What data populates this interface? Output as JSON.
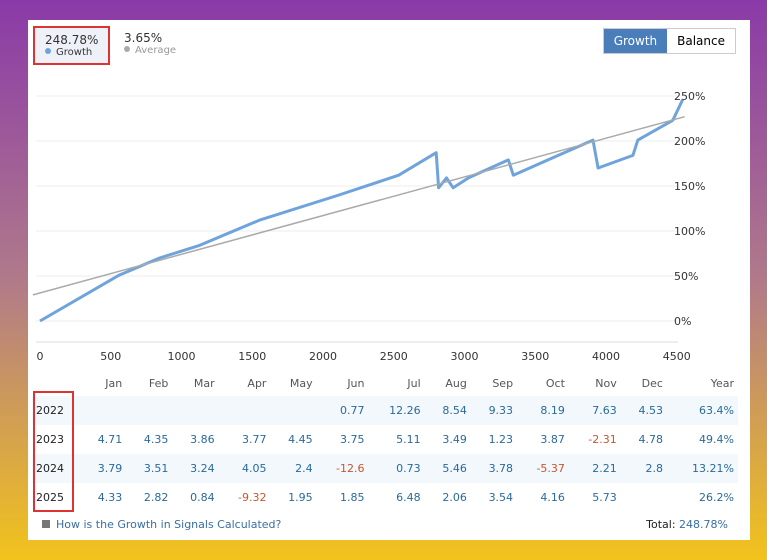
{
  "stats": {
    "growth_value": "248.78%",
    "growth_label": "Growth",
    "average_value": "3.65%",
    "average_label": "Average"
  },
  "toggle": {
    "growth": "Growth",
    "balance": "Balance"
  },
  "colors": {
    "growth": "#6fa3dc",
    "trend": "#aaaaaa",
    "negative": "#c8552e",
    "positive": "#2a6a9a"
  },
  "chart_data": {
    "type": "line",
    "xlim": [
      0,
      4700
    ],
    "ylim": [
      -25,
      260
    ],
    "x_ticks": [
      0,
      500,
      1000,
      1500,
      2000,
      2500,
      3000,
      3500,
      4000,
      4500
    ],
    "y_ticks": [
      0,
      50,
      100,
      150,
      200,
      250
    ],
    "y_tick_labels": [
      "0%",
      "50%",
      "100%",
      "150%",
      "200%",
      "250%"
    ],
    "series": [
      {
        "name": "Growth",
        "x": [
          0,
          560,
          845,
          1127,
          1550,
          2113,
          2535,
          2800,
          2817,
          2873,
          2920,
          3028,
          3310,
          3345,
          3662,
          3908,
          3944,
          4190,
          4225,
          4472,
          4542
        ],
        "y": [
          0,
          51,
          70,
          84,
          112,
          140,
          162,
          187,
          148,
          159,
          148,
          159,
          179,
          162,
          184,
          201,
          170,
          184,
          201,
          223,
          246
        ]
      },
      {
        "name": "Trend",
        "x": [
          -50,
          4556
        ],
        "y": [
          29,
          227
        ]
      }
    ]
  },
  "table": {
    "headers": [
      "",
      "Jan",
      "Feb",
      "Mar",
      "Apr",
      "May",
      "Jun",
      "Jul",
      "Aug",
      "Sep",
      "Oct",
      "Nov",
      "Dec",
      "Year"
    ],
    "rows": [
      [
        "2022",
        "",
        "",
        "",
        "",
        "",
        "0.77",
        "12.26",
        "8.54",
        "9.33",
        "8.19",
        "7.63",
        "4.53",
        "63.4%"
      ],
      [
        "2023",
        "4.71",
        "4.35",
        "3.86",
        "3.77",
        "4.45",
        "3.75",
        "5.11",
        "3.49",
        "1.23",
        "3.87",
        "-2.31",
        "4.78",
        "49.4%"
      ],
      [
        "2024",
        "3.79",
        "3.51",
        "3.24",
        "4.05",
        "2.4",
        "-12.6",
        "0.73",
        "5.46",
        "3.78",
        "-5.37",
        "2.21",
        "2.8",
        "13.21%"
      ],
      [
        "2025",
        "4.33",
        "2.82",
        "0.84",
        "-9.32",
        "1.95",
        "1.85",
        "6.48",
        "2.06",
        "3.54",
        "4.16",
        "5.73",
        "",
        "26.2%"
      ]
    ]
  },
  "footer": {
    "link": "How is the Growth in Signals Calculated?",
    "total_label": "Total:",
    "total_value": "248.78%"
  }
}
